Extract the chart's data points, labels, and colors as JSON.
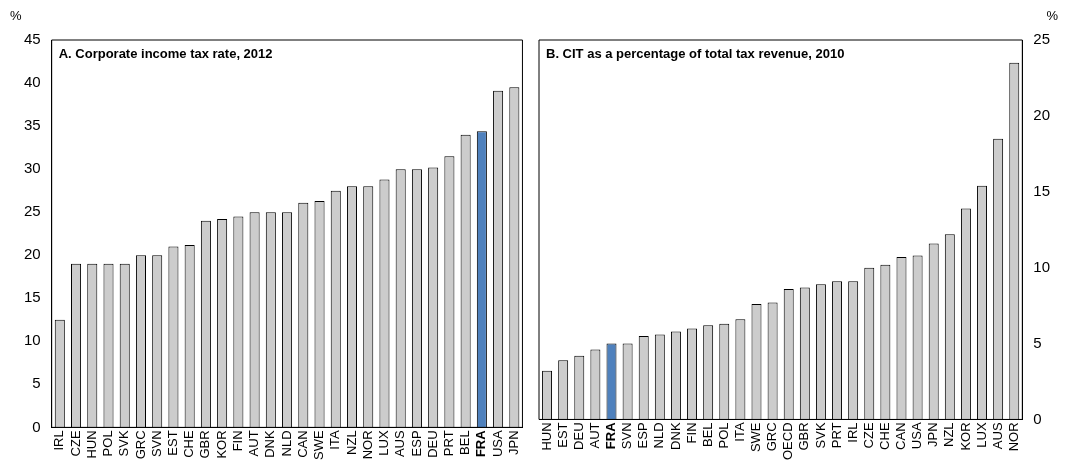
{
  "chart_data": [
    {
      "type": "bar",
      "title": "A. Corporate income tax rate, 2012",
      "ylabel": "%",
      "categories": [
        "IRL",
        "CZE",
        "HUN",
        "POL",
        "SVK",
        "GRC",
        "SVN",
        "EST",
        "CHE",
        "GBR",
        "KOR",
        "FIN",
        "AUT",
        "DNK",
        "NLD",
        "CAN",
        "SWE",
        "ITA",
        "NZL",
        "NOR",
        "LUX",
        "AUS",
        "ESP",
        "DEU",
        "PRT",
        "BEL",
        "FRA",
        "USA",
        "JPN"
      ],
      "values": [
        12.5,
        19,
        19,
        19,
        19,
        20,
        20,
        21,
        21.2,
        24,
        24.2,
        24.5,
        25,
        25,
        25,
        26.1,
        26.3,
        27.5,
        28,
        28,
        28.8,
        30,
        30,
        30.2,
        31.5,
        34,
        34.4,
        39.1,
        39.5
      ],
      "colors": [
        "#cccccc",
        "#cccccc",
        "#cccccc",
        "#cccccc",
        "#cccccc",
        "#cccccc",
        "#cccccc",
        "#cccccc",
        "#cccccc",
        "#cccccc",
        "#cccccc",
        "#cccccc",
        "#cccccc",
        "#cccccc",
        "#cccccc",
        "#cccccc",
        "#cccccc",
        "#cccccc",
        "#cccccc",
        "#cccccc",
        "#cccccc",
        "#cccccc",
        "#cccccc",
        "#cccccc",
        "#cccccc",
        "#cccccc",
        "#4f81bd",
        "#cccccc",
        "#cccccc"
      ],
      "ylim": [
        0,
        45
      ],
      "yticks": [
        0,
        5,
        10,
        15,
        20,
        25,
        30,
        35,
        40,
        45
      ],
      "grid": false,
      "legend": false
    },
    {
      "type": "bar",
      "title": "B. CIT as a percentage of total tax revenue, 2010",
      "y2label": "%",
      "categories": [
        "HUN",
        "EST",
        "DEU",
        "AUT",
        "FRA",
        "SVN",
        "ESP",
        "NLD",
        "DNK",
        "FIN",
        "BEL",
        "POL",
        "ITA",
        "SWE",
        "GRC",
        "OECD",
        "GBR",
        "SVK",
        "PRT",
        "IRL",
        "CZE",
        "CHE",
        "CAN",
        "USA",
        "JPN",
        "NZL",
        "KOR",
        "LUX",
        "AUS",
        "NOR"
      ],
      "series": [
        {
          "axis": "y2",
          "values": [
            3.2,
            3.9,
            4.2,
            4.6,
            5.0,
            5.0,
            5.5,
            5.6,
            5.8,
            6.0,
            6.2,
            6.3,
            6.6,
            7.6,
            7.7,
            8.6,
            8.7,
            8.9,
            9.1,
            9.1,
            10.0,
            10.2,
            10.7,
            10.8,
            11.6,
            12.2,
            13.9,
            15.4,
            18.5,
            23.5
          ],
          "colors": [
            "#cccccc",
            "#cccccc",
            "#cccccc",
            "#cccccc",
            "#4f81bd",
            "#cccccc",
            "#cccccc",
            "#cccccc",
            "#cccccc",
            "#cccccc",
            "#cccccc",
            "#cccccc",
            "#cccccc",
            "#cccccc",
            "#cccccc",
            "#cccccc",
            "#cccccc",
            "#cccccc",
            "#cccccc",
            "#cccccc",
            "#cccccc",
            "#cccccc",
            "#cccccc",
            "#cccccc",
            "#cccccc",
            "#cccccc",
            "#cccccc",
            "#cccccc",
            "#cccccc",
            "#cccccc"
          ]
        }
      ],
      "y2lim": [
        0,
        25
      ],
      "y2ticks": [
        0,
        5,
        10,
        15,
        20,
        25
      ],
      "grid": false,
      "legend": false
    }
  ]
}
